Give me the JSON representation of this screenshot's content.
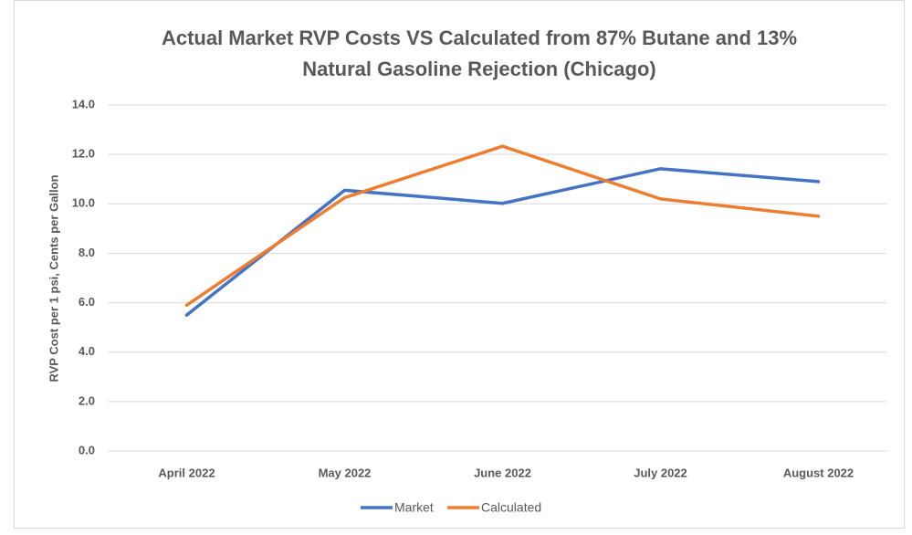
{
  "chart_data": {
    "type": "line",
    "title": [
      "Actual Market RVP Costs VS Calculated from 87% Butane and 13%",
      "Natural Gasoline Rejection (Chicago)"
    ],
    "y_label": "RVP Cost per 1 psi, Cents per Gallon",
    "categories": [
      "April 2022",
      "May 2022",
      "June 2022",
      "July 2022",
      "August 2022"
    ],
    "series": [
      {
        "name": "Market",
        "color": "#4472c4",
        "values": [
          5.5,
          10.55,
          10.02,
          11.42,
          10.9
        ]
      },
      {
        "name": "Calculated",
        "color": "#ed7d31",
        "values": [
          5.9,
          10.25,
          12.33,
          10.2,
          9.5
        ]
      }
    ],
    "ylim": [
      0,
      14
    ],
    "yticks": [
      {
        "value": 0,
        "label": "0.0"
      },
      {
        "value": 2,
        "label": "2.0"
      },
      {
        "value": 4,
        "label": "4.0"
      },
      {
        "value": 6,
        "label": "6.0"
      },
      {
        "value": 8,
        "label": "8.0"
      },
      {
        "value": 10,
        "label": "10.0"
      },
      {
        "value": 12,
        "label": "12.0"
      },
      {
        "value": 14,
        "label": "14.0"
      }
    ],
    "grid": true,
    "legend": "bottom"
  }
}
